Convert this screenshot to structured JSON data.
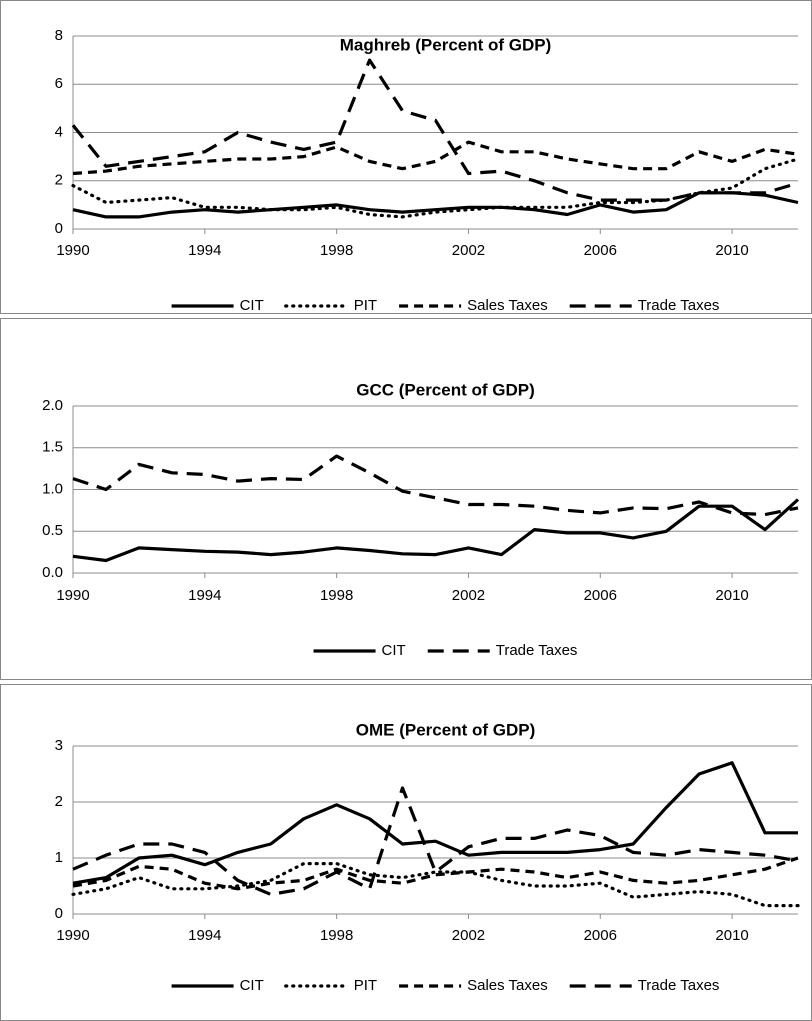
{
  "chart_data": [
    {
      "type": "line",
      "title": "Maghreb (Percent of GDP)",
      "x": [
        1990,
        1991,
        1992,
        1993,
        1994,
        1995,
        1996,
        1997,
        1998,
        1999,
        2000,
        2001,
        2002,
        2003,
        2004,
        2005,
        2006,
        2007,
        2008,
        2009,
        2010,
        2011,
        2012
      ],
      "xlim": [
        1990,
        2012
      ],
      "xticks": [
        1990,
        1994,
        1998,
        2002,
        2006,
        2010
      ],
      "ylim": [
        0,
        8
      ],
      "yticks": [
        0,
        2,
        4,
        6,
        8
      ],
      "grid": true,
      "legend": "bottom",
      "series": [
        {
          "name": "CIT",
          "color": "#000000",
          "style": "solid",
          "values": [
            0.8,
            0.5,
            0.5,
            0.7,
            0.8,
            0.7,
            0.8,
            0.9,
            1.0,
            0.8,
            0.7,
            0.8,
            0.9,
            0.9,
            0.8,
            0.6,
            1.0,
            0.7,
            0.8,
            1.5,
            1.5,
            1.4,
            1.1
          ]
        },
        {
          "name": "PIT",
          "color": "#000000",
          "style": "dotted",
          "values": [
            1.8,
            1.1,
            1.2,
            1.3,
            0.9,
            0.9,
            0.8,
            0.8,
            0.9,
            0.6,
            0.5,
            0.7,
            0.8,
            0.9,
            0.9,
            0.9,
            1.1,
            1.1,
            1.2,
            1.5,
            1.7,
            2.5,
            2.9
          ]
        },
        {
          "name": "Sales Taxes",
          "color": "#000000",
          "style": "dashed",
          "values": [
            2.3,
            2.4,
            2.6,
            2.7,
            2.8,
            2.9,
            2.9,
            3.0,
            3.4,
            2.8,
            2.5,
            2.8,
            3.6,
            3.2,
            3.2,
            2.9,
            2.7,
            2.5,
            2.5,
            3.2,
            2.8,
            3.3,
            3.1
          ]
        },
        {
          "name": "Trade Taxes",
          "color": "#000000",
          "style": "long-dashed",
          "values": [
            4.3,
            2.6,
            2.8,
            3.0,
            3.2,
            4.0,
            3.6,
            3.3,
            3.6,
            7.0,
            4.9,
            4.5,
            2.3,
            2.4,
            2.0,
            1.5,
            1.2,
            1.2,
            1.2,
            1.5,
            1.5,
            1.5,
            1.9
          ]
        }
      ]
    },
    {
      "type": "line",
      "title": "GCC (Percent of GDP)",
      "x": [
        1990,
        1991,
        1992,
        1993,
        1994,
        1995,
        1996,
        1997,
        1998,
        1999,
        2000,
        2001,
        2002,
        2003,
        2004,
        2005,
        2006,
        2007,
        2008,
        2009,
        2010,
        2011,
        2012
      ],
      "xlim": [
        1990,
        2012
      ],
      "xticks": [
        1990,
        1994,
        1998,
        2002,
        2006,
        2010
      ],
      "ylim": [
        0,
        2
      ],
      "yticks": [
        {
          "value": 0,
          "label": "0.0"
        },
        {
          "value": 0.5,
          "label": "0.5"
        },
        {
          "value": 1,
          "label": "1.0"
        },
        {
          "value": 1.5,
          "label": "1.5"
        },
        {
          "value": 2,
          "label": "2.0"
        }
      ],
      "grid": true,
      "legend": "bottom",
      "series": [
        {
          "name": "CIT",
          "color": "#000000",
          "style": "solid",
          "values": [
            0.2,
            0.15,
            0.3,
            0.28,
            0.26,
            0.25,
            0.22,
            0.25,
            0.3,
            0.27,
            0.23,
            0.22,
            0.3,
            0.22,
            0.52,
            0.48,
            0.48,
            0.42,
            0.5,
            0.8,
            0.8,
            0.52,
            0.88
          ]
        },
        {
          "name": "Trade Taxes",
          "color": "#000000",
          "style": "long-dashed",
          "values": [
            1.13,
            1.0,
            1.3,
            1.2,
            1.18,
            1.1,
            1.13,
            1.12,
            1.4,
            1.2,
            0.98,
            0.9,
            0.82,
            0.82,
            0.8,
            0.75,
            0.72,
            0.78,
            0.77,
            0.85,
            0.72,
            0.7,
            0.78
          ]
        }
      ]
    },
    {
      "type": "line",
      "title": "OME (Percent of GDP)",
      "x": [
        1990,
        1991,
        1992,
        1993,
        1994,
        1995,
        1996,
        1997,
        1998,
        1999,
        2000,
        2001,
        2002,
        2003,
        2004,
        2005,
        2006,
        2007,
        2008,
        2009,
        2010,
        2011,
        2012
      ],
      "xlim": [
        1990,
        2012
      ],
      "xticks": [
        1990,
        1994,
        1998,
        2002,
        2006,
        2010
      ],
      "ylim": [
        0,
        3
      ],
      "yticks": [
        0,
        1,
        2,
        3
      ],
      "grid": true,
      "legend": "bottom",
      "series": [
        {
          "name": "CIT",
          "color": "#000000",
          "style": "solid",
          "values": [
            0.55,
            0.65,
            1.0,
            1.05,
            0.88,
            1.1,
            1.25,
            1.7,
            1.95,
            1.7,
            1.25,
            1.3,
            1.05,
            1.1,
            1.1,
            1.1,
            1.15,
            1.25,
            1.9,
            2.5,
            2.7,
            1.45,
            1.45
          ]
        },
        {
          "name": "PIT",
          "color": "#000000",
          "style": "dotted",
          "values": [
            0.35,
            0.45,
            0.65,
            0.45,
            0.45,
            0.5,
            0.6,
            0.9,
            0.9,
            0.7,
            0.65,
            0.75,
            0.75,
            0.6,
            0.5,
            0.5,
            0.55,
            0.3,
            0.35,
            0.4,
            0.35,
            0.15,
            0.15
          ]
        },
        {
          "name": "Sales Taxes",
          "color": "#000000",
          "style": "dashed",
          "values": [
            0.5,
            0.6,
            0.85,
            0.8,
            0.55,
            0.45,
            0.55,
            0.6,
            0.8,
            0.6,
            0.55,
            0.7,
            0.75,
            0.8,
            0.75,
            0.65,
            0.75,
            0.6,
            0.55,
            0.6,
            0.7,
            0.8,
            1.0
          ]
        },
        {
          "name": "Trade Taxes",
          "color": "#000000",
          "style": "long-dashed",
          "values": [
            0.8,
            1.05,
            1.25,
            1.25,
            1.1,
            0.6,
            0.35,
            0.45,
            0.75,
            0.45,
            2.25,
            0.75,
            1.2,
            1.35,
            1.35,
            1.5,
            1.4,
            1.1,
            1.05,
            1.15,
            1.1,
            1.05,
            0.95
          ]
        }
      ]
    }
  ]
}
